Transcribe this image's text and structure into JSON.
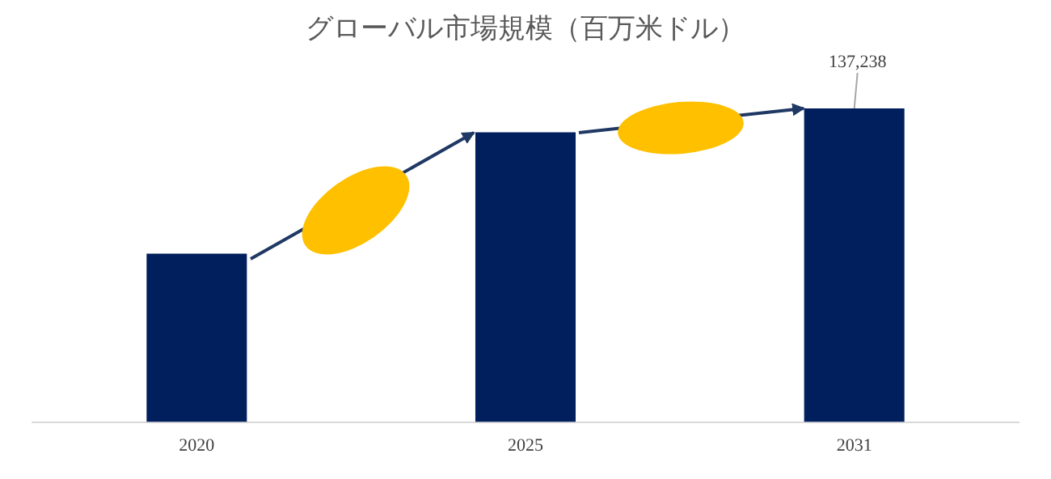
{
  "chart_data": {
    "type": "bar",
    "title": "グローバル市場規模（百万米ドル）",
    "categories": [
      "2020",
      "2025",
      "2031"
    ],
    "values": [
      73700,
      126800,
      137238
    ],
    "value_labels": [
      null,
      null,
      "137,238"
    ],
    "color": "#001f5c",
    "grid": false,
    "legend": false
  }
}
